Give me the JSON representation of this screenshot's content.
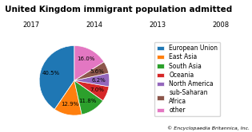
{
  "chart_data": {
    "type": "pie",
    "title": "United Kingdom immigrant population admitted",
    "categories": [
      "European Union",
      "East Asia",
      "South Asia",
      "Oceania",
      "North America",
      "sub-Saharan\nAfrica",
      "other"
    ],
    "values": [
      40.5,
      12.9,
      11.8,
      7.0,
      6.2,
      5.6,
      16.0
    ],
    "value_labels": [
      "40.5%",
      "12.9%",
      "11.8%",
      "7.0%",
      "6.2%",
      "5.6%",
      "16.0%"
    ],
    "data_labels": true,
    "legend": "center left",
    "annotations": [
      "2017",
      "2014",
      "2013",
      "2008",
      "© Encyclopaedia Britannica, Inc."
    ]
  }
}
